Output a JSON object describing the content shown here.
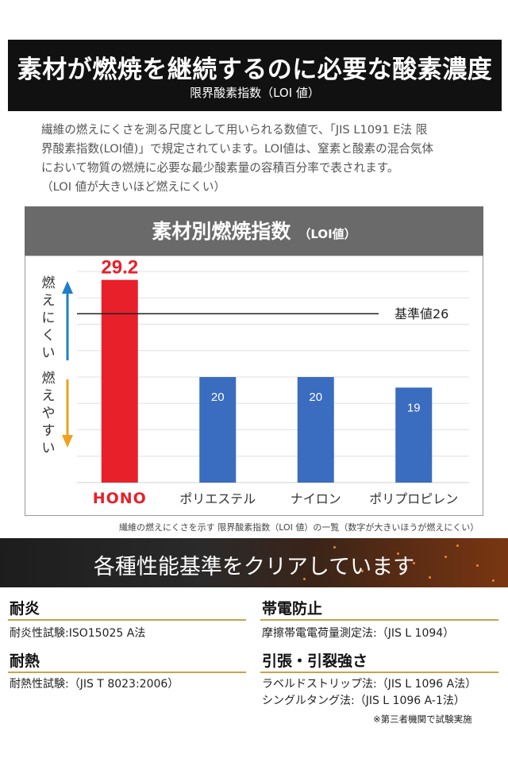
{
  "header": {
    "title": "素材が燃焼を継続するのに必要な酸素濃度",
    "subtitle": "限界酸素指数（LOI 値）"
  },
  "description": [
    "繊維の燃えにくさを測る尺度として用いられる数値で、「JIS L1091 E法 限",
    "界酸素指数(LOI値)」で規定されています。LOI値は、窒素と酸素の混合気体",
    "において物質の燃焼に必要な最少酸素量の容積百分率で表されます。",
    "（LOI 値が大きいほど燃えにくい）"
  ],
  "chart_panel": {
    "title": "素材別燃焼指数",
    "title_suffix": "（LOI値）",
    "caption": "繊維の燃えにくさを示す 限界酸素指数（LOI 値）の一覧（数字が大きいほうが燃えにくい）"
  },
  "chart_data": {
    "type": "bar",
    "categories": [
      "HONO",
      "ポリエステル",
      "ナイロン",
      "ポリプロピレン"
    ],
    "values": [
      29.2,
      20,
      20,
      19
    ],
    "data_labels": [
      "29.2",
      "20",
      "20",
      "19"
    ],
    "colors": [
      "#e8202a",
      "#3a6cc0",
      "#3a6cc0",
      "#3a6cc0"
    ],
    "reference_line": {
      "value": 26,
      "label": "基準値26"
    },
    "ylim": [
      10,
      30
    ],
    "grid": true,
    "axis_annotations": {
      "up": "燃えにくい",
      "down": "燃えやすい"
    },
    "title": "素材別燃焼指数（LOI値）"
  },
  "banner": {
    "title": "各種性能基準をクリアしています"
  },
  "performance": [
    {
      "heading": "耐炎",
      "lines": [
        "耐炎性試験:ISO15025 A法"
      ]
    },
    {
      "heading": "帯電防止",
      "lines": [
        "摩擦帯電電荷量測定法:（JIS L 1094）"
      ]
    },
    {
      "heading": "耐熱",
      "lines": [
        "耐熱性試験:（JIS T 8023:2006）"
      ]
    },
    {
      "heading": "引張・引裂強さ",
      "lines": [
        "ラベルドストリップ法:（JIS L 1096 A法）",
        "シングルタング法:（JIS L 1096 A-1法）"
      ]
    }
  ],
  "note": "※第三者機関で試験実施",
  "colors": {
    "accent_red": "#e8202a",
    "bar_blue": "#3a6cc0",
    "gold": "#c9a24a",
    "arrow_blue": "#1e7fc8",
    "arrow_orange": "#f0a020"
  }
}
